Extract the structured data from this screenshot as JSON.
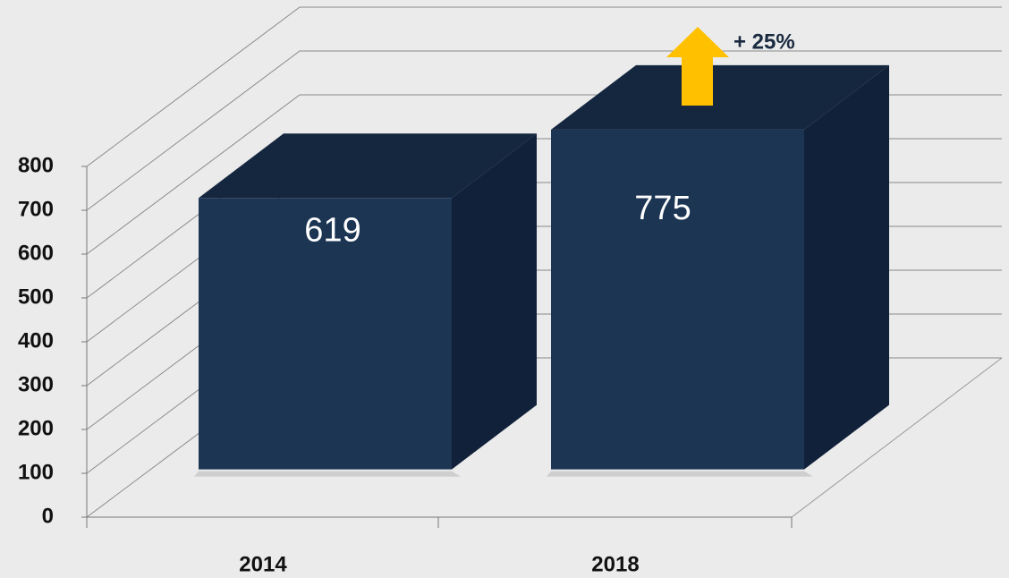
{
  "chart_data": {
    "type": "bar3d",
    "categories": [
      "2014",
      "2018"
    ],
    "values": [
      619,
      775
    ],
    "colors": {
      "front": "#1c3553",
      "top": "#15263f",
      "side": "#11213a"
    },
    "ylim": [
      0,
      800
    ],
    "yticks": [
      0,
      100,
      200,
      300,
      400,
      500,
      600,
      700,
      800
    ],
    "grid": true,
    "annotation": "+ 25%"
  }
}
